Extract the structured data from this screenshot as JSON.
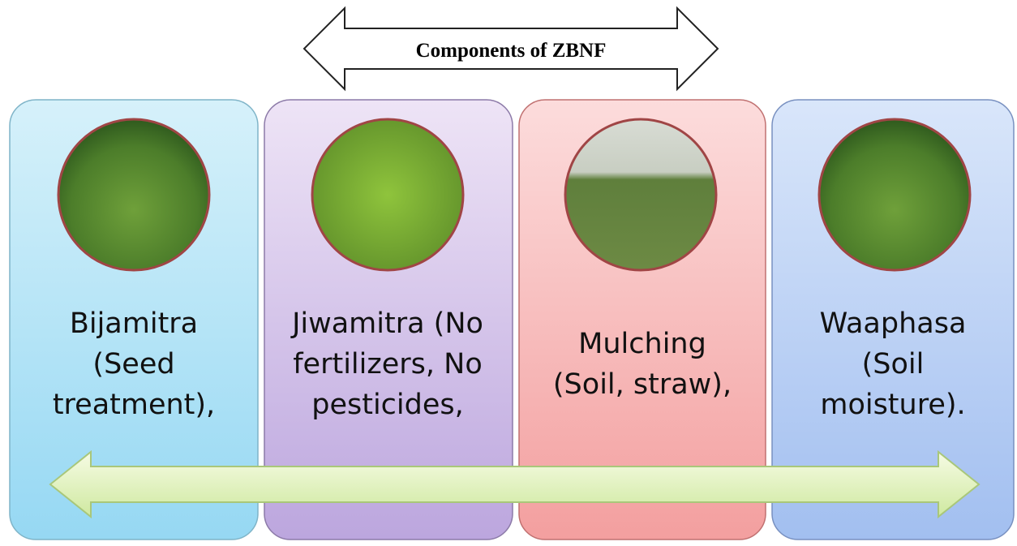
{
  "header": {
    "title": "Components of ZBNF"
  },
  "cards": [
    {
      "lines": [
        "Bijamitra",
        "(Seed",
        "treatment),"
      ]
    },
    {
      "lines": [
        "Jiwamitra (No",
        "fertilizers, No",
        "pesticides,"
      ]
    },
    {
      "lines": [
        "Mulching",
        "(Soil, straw),"
      ]
    },
    {
      "lines": [
        "Waaphasa",
        "(Soil",
        "moisture)."
      ]
    }
  ]
}
